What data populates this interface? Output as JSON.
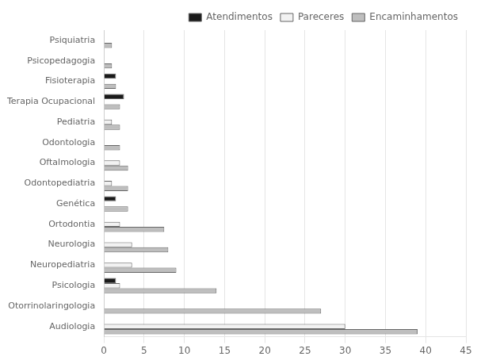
{
  "chart_data": {
    "type": "bar",
    "orientation": "horizontal",
    "categories": [
      "Audiologia",
      "Otorrinolaringologia",
      "Psicologia",
      "Neuropediatria",
      "Neurologia",
      "Ortodontia",
      "Genética",
      "Odontopediatria",
      "Oftalmologia",
      "Odontologia",
      "Pediatria",
      "Terapia Ocupacional",
      "Fisioterapia",
      "Psicopedagogia",
      "Psiquiatria"
    ],
    "series": [
      {
        "name": "Atendimentos",
        "color": "#1a1a1a",
        "values": [
          0,
          0,
          1.5,
          0,
          0,
          0,
          1.5,
          0,
          0,
          0,
          0,
          2.5,
          1.5,
          0,
          0
        ]
      },
      {
        "name": "Pareceres",
        "color": "#f2f2f2",
        "values": [
          30,
          0,
          2,
          3.5,
          3.5,
          2,
          0,
          1,
          2,
          0,
          1,
          0,
          0,
          0,
          0
        ]
      },
      {
        "name": "Encaminhamentos",
        "color": "#bebebe",
        "values": [
          39,
          27,
          14,
          9,
          8,
          7.5,
          3,
          3,
          3,
          2,
          2,
          2,
          1.5,
          1,
          1
        ]
      }
    ],
    "xlim": [
      0,
      45
    ],
    "xticks": [
      0,
      5,
      10,
      15,
      20,
      25,
      30,
      35,
      40,
      45
    ],
    "grid": true,
    "legend": "upper right"
  }
}
